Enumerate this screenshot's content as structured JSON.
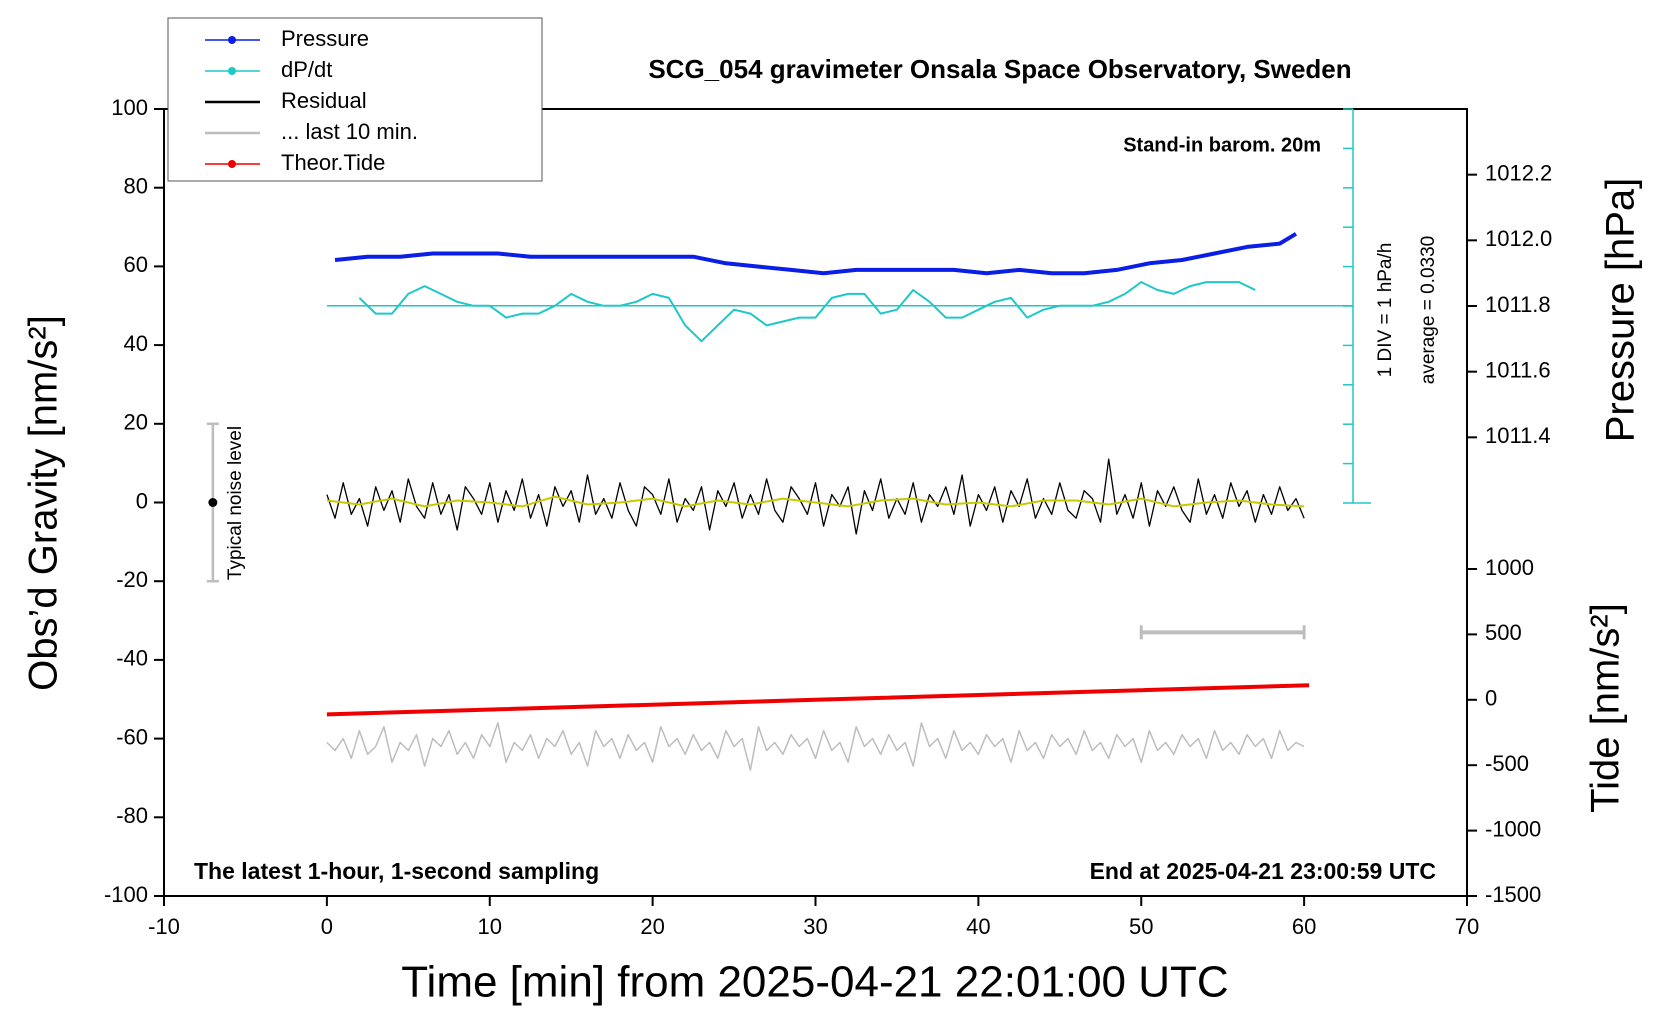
{
  "chart_data": {
    "type": "line",
    "title": "SCG_054 gravimeter Onsala Space Observatory, Sweden",
    "xlabel": "Time [min] from 2025-04-21 22:01:00 UTC",
    "ylabel": "Obs’d Gravity [nm/s²]",
    "y2label": "Pressure [hPa]",
    "y3label": "Tide [nm/s²]",
    "annotations": [
      "Stand-in barom. 20m",
      "1 DIV = 1 hPa/h",
      "average = 0.0330",
      "The latest 1-hour, 1-second sampling",
      "End at 2025-04-21 23:00:59 UTC"
    ],
    "xlim": [
      -10,
      70
    ],
    "xticks": [
      -10,
      0,
      10,
      20,
      30,
      40,
      50,
      60,
      70
    ],
    "ylim": [
      -100,
      100
    ],
    "yticks": [
      -100,
      -80,
      -60,
      -40,
      -20,
      0,
      20,
      40,
      60,
      80,
      100
    ],
    "y2lim": [
      1011.2,
      1012.4
    ],
    "y2ticks": [
      1011.4,
      1011.6,
      1011.8,
      {
        "value": 1012,
        "label": "1012.0"
      },
      1012.2
    ],
    "y3lim": [
      -1500,
      1000
    ],
    "y3ticks": [
      -1500,
      -1000,
      -500,
      0,
      500,
      1000
    ],
    "x": [
      0,
      0.5,
      1,
      1.5,
      2,
      2.5,
      3,
      3.5,
      4,
      4.5,
      5,
      5.5,
      6,
      6.5,
      7,
      7.5,
      8,
      8.5,
      9,
      9.5,
      10,
      10.5,
      11,
      11.5,
      12,
      12.5,
      13,
      13.5,
      14,
      14.5,
      15,
      15.5,
      16,
      16.5,
      17,
      17.5,
      18,
      18.5,
      19,
      19.5,
      20,
      20.5,
      21,
      21.5,
      22,
      22.5,
      23,
      23.5,
      24,
      24.5,
      25,
      25.5,
      26,
      26.5,
      27,
      27.5,
      28,
      28.5,
      29,
      29.5,
      30,
      30.5,
      31,
      31.5,
      32,
      32.5,
      33,
      33.5,
      34,
      34.5,
      35,
      35.5,
      36,
      36.5,
      37,
      37.5,
      38,
      38.5,
      39,
      39.5,
      40,
      40.5,
      41,
      41.5,
      42,
      42.5,
      43,
      43.5,
      44,
      44.5,
      45,
      45.5,
      46,
      46.5,
      47,
      47.5,
      48,
      48.5,
      49,
      49.5,
      50,
      50.5,
      51,
      51.5,
      52,
      52.5,
      53,
      53.5,
      54,
      54.5,
      55,
      55.5,
      56,
      56.5,
      57,
      57.5,
      58,
      58.5,
      59,
      59.5,
      60
    ],
    "series": [
      {
        "name": "Pressure",
        "color": "#0a1ee6",
        "axis": "y2",
        "width": 4,
        "marker": true,
        "x": [
          0.5,
          2.5,
          4.5,
          6.5,
          8.5,
          10.5,
          12.5,
          14.5,
          16.5,
          18.5,
          20.5,
          22.5,
          24.5,
          26.5,
          28.5,
          30.5,
          32.5,
          34.5,
          36.5,
          38.5,
          40.5,
          42.5,
          44.5,
          46.5,
          48.5,
          50.5,
          52.5,
          54.5,
          56.5,
          58.5,
          59.5
        ],
        "values": [
          1011.94,
          1011.95,
          1011.95,
          1011.96,
          1011.96,
          1011.96,
          1011.95,
          1011.95,
          1011.95,
          1011.95,
          1011.95,
          1011.95,
          1011.93,
          1011.92,
          1011.91,
          1011.9,
          1011.91,
          1011.91,
          1011.91,
          1011.91,
          1011.9,
          1011.91,
          1011.9,
          1011.9,
          1011.91,
          1011.93,
          1011.94,
          1011.96,
          1011.98,
          1011.99,
          1012.02
        ]
      },
      {
        "name": "dP/dt",
        "color": "#1ec8c8",
        "axis": "y",
        "width": 2,
        "marker": true,
        "x": [
          2,
          3,
          4,
          5,
          6,
          7,
          8,
          9,
          10,
          11,
          12,
          13,
          14,
          15,
          16,
          17,
          18,
          19,
          20,
          21,
          22,
          23,
          24,
          25,
          26,
          27,
          28,
          29,
          30,
          31,
          32,
          33,
          34,
          35,
          36,
          37,
          38,
          39,
          40,
          41,
          42,
          43,
          44,
          45,
          46,
          47,
          48,
          49,
          50,
          51,
          52,
          53,
          54,
          55,
          56,
          57
        ],
        "values": [
          52,
          48,
          48,
          53,
          55,
          53,
          51,
          50,
          50,
          47,
          48,
          48,
          50,
          53,
          51,
          50,
          50,
          51,
          53,
          52,
          45,
          41,
          45,
          49,
          48,
          45,
          46,
          47,
          47,
          52,
          53,
          53,
          48,
          49,
          54,
          51,
          47,
          47,
          49,
          51,
          52,
          47,
          49,
          50,
          50,
          50,
          51,
          53,
          56,
          54,
          53,
          55,
          56,
          56,
          56,
          54
        ],
        "baseline": {
          "value": 50,
          "x": [
            0,
            63
          ]
        }
      },
      {
        "name": "Residual",
        "color": "#000000",
        "axis": "y",
        "width": 1.3,
        "values": [
          2,
          -4,
          5,
          -3,
          1,
          -6,
          4,
          -2,
          3,
          -5,
          6,
          -1,
          -4,
          5,
          -3,
          2,
          -7,
          4,
          1,
          -3,
          5,
          -5,
          3,
          -2,
          6,
          -4,
          2,
          -6,
          4,
          -1,
          3,
          -5,
          7,
          -3,
          1,
          -4,
          5,
          -2,
          -6,
          4,
          2,
          -3,
          6,
          -5,
          1,
          -2,
          4,
          -7,
          3,
          -1,
          5,
          -4,
          2,
          -3,
          6,
          -2,
          -5,
          4,
          1,
          -3,
          5,
          -6,
          2,
          -1,
          4,
          -8,
          3,
          -2,
          6,
          -4,
          1,
          -3,
          5,
          -5,
          2,
          -1,
          4,
          -3,
          7,
          -6,
          2,
          -2,
          4,
          -5,
          3,
          -1,
          6,
          -4,
          1,
          -3,
          5,
          -2,
          -4,
          3,
          1,
          -5,
          11,
          -3,
          2,
          -4,
          5,
          -6,
          3,
          -1,
          4,
          -2,
          -5,
          6,
          -3,
          2,
          -4,
          5,
          -1,
          3,
          -5,
          2,
          -3,
          4,
          -2,
          1,
          -4
        ]
      },
      {
        "color": "#c8c800",
        "axis": "y",
        "width": 2,
        "x": [
          0,
          2,
          4,
          6,
          8,
          10,
          12,
          14,
          16,
          18,
          20,
          22,
          24,
          26,
          28,
          30,
          32,
          34,
          36,
          38,
          40,
          42,
          44,
          46,
          48,
          50,
          52,
          54,
          56,
          58,
          60
        ],
        "values": [
          0.5,
          -0.5,
          1,
          -1,
          0.5,
          0,
          -1,
          1.5,
          -0.5,
          0,
          1,
          -1,
          0.5,
          -0.5,
          1,
          0,
          -1,
          0.5,
          1,
          -0.5,
          0,
          -1,
          0.5,
          0.5,
          -0.5,
          1,
          -1,
          0,
          0.5,
          -0.5,
          -1
        ]
      },
      {
        "name": "... last 10 min.",
        "color": "#bdbdbd",
        "axis": "y",
        "width": 4,
        "ends": true,
        "x": [
          50,
          60
        ],
        "values": [
          -33,
          -33
        ]
      },
      {
        "color": "#bdbdbd",
        "axis": "y",
        "width": 1.5,
        "values": [
          -61,
          -63,
          -60,
          -65,
          -58,
          -64,
          -62,
          -57,
          -66,
          -61,
          -63,
          -59,
          -67,
          -60,
          -62,
          -58,
          -64,
          -61,
          -65,
          -59,
          -62,
          -56,
          -66,
          -61,
          -63,
          -59,
          -65,
          -60,
          -62,
          -58,
          -64,
          -61,
          -67,
          -58,
          -62,
          -60,
          -65,
          -59,
          -63,
          -61,
          -66,
          -57,
          -62,
          -60,
          -64,
          -59,
          -63,
          -61,
          -65,
          -58,
          -62,
          -60,
          -68,
          -57,
          -63,
          -61,
          -64,
          -59,
          -62,
          -60,
          -65,
          -58,
          -63,
          -61,
          -66,
          -57,
          -62,
          -60,
          -64,
          -59,
          -63,
          -61,
          -67,
          -56,
          -62,
          -60,
          -65,
          -58,
          -63,
          -61,
          -64,
          -59,
          -62,
          -60,
          -66,
          -58,
          -63,
          -61,
          -65,
          -59,
          -62,
          -60,
          -64,
          -58,
          -63,
          -61,
          -65,
          -59,
          -62,
          -60,
          -66,
          -58,
          -63,
          -61,
          -64,
          -59,
          -62,
          -60,
          -65,
          -58,
          -63,
          -61,
          -64,
          -59,
          -62,
          -60,
          -65,
          -58,
          -63,
          -61,
          -62
        ]
      },
      {
        "name": "Theor.Tide",
        "color": "#ee0000",
        "axis": "y3",
        "width": 4,
        "marker": true,
        "x": [
          0,
          30,
          60.3
        ],
        "values": [
          -112,
          0,
          112
        ]
      }
    ],
    "noise_level": {
      "label": "Typical noise level",
      "x": -7,
      "value": 0,
      "low": -20,
      "high": 20
    }
  }
}
